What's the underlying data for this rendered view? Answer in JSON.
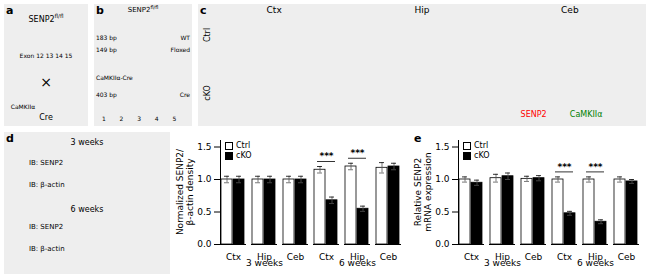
{
  "chart_data": [
    {
      "type": "schematic",
      "title": "a",
      "annotations": [
        {
          "text": "SENP2",
          "superscript": "fl/fl"
        },
        {
          "text": "Exon 12 13 14  15"
        },
        {
          "text": "×"
        },
        {
          "text": "CaMKIIα"
        },
        {
          "text": "Cre"
        }
      ]
    },
    {
      "type": "schematic",
      "title": "b",
      "annotations": [
        {
          "text": "SENP2",
          "superscript": "fl/fl"
        },
        {
          "text": "183 bp"
        },
        {
          "text": "149 bp"
        },
        {
          "text": "WT"
        },
        {
          "text": "Floxed"
        },
        {
          "text": "CaMKIIα-Cre"
        },
        {
          "text": "403 bp"
        },
        {
          "text": "Cre"
        },
        {
          "text": "1"
        },
        {
          "text": "2"
        },
        {
          "text": "3"
        },
        {
          "text": "4"
        },
        {
          "text": "5"
        }
      ]
    },
    {
      "type": "schematic",
      "title": "c",
      "annotations": [
        {
          "text": "Ctx"
        },
        {
          "text": "Hip"
        },
        {
          "text": "Ceb"
        },
        {
          "text": "Ctrl"
        },
        {
          "text": "cKO"
        },
        {
          "text": "SENP2",
          "color": "red"
        },
        {
          "text": "CaMKIIα",
          "color": "green"
        }
      ]
    },
    {
      "type": "schematic",
      "title": "d",
      "annotations": [
        {
          "text": "3 weeks"
        },
        {
          "text": "6 weeks"
        },
        {
          "text": "IB: SENP2"
        },
        {
          "text": "IB: β-actin"
        },
        {
          "text": "IB: SENP2"
        },
        {
          "text": "IB: β-actin"
        }
      ]
    },
    {
      "type": "bar",
      "categories": [
        "Ctx",
        "Hip",
        "Ceb",
        "Ctx",
        "Hip",
        "Ceb"
      ],
      "category_groups": [
        "3 weeks",
        "3 weeks",
        "3 weeks",
        "6 weeks",
        "6 weeks",
        "6 weeks"
      ],
      "series": [
        {
          "name": "Ctrl",
          "color": "white",
          "values": [
            1.0,
            1.0,
            1.0,
            1.15,
            1.2,
            1.18
          ],
          "errors": [
            0.05,
            0.05,
            0.05,
            0.05,
            0.05,
            0.08
          ]
        },
        {
          "name": "cKO",
          "color": "black",
          "values": [
            1.0,
            1.0,
            1.0,
            0.68,
            0.55,
            1.2
          ],
          "errors": [
            0.05,
            0.05,
            0.05,
            0.05,
            0.04,
            0.05
          ]
        }
      ],
      "significance": [
        null,
        null,
        null,
        "***",
        "***",
        null
      ],
      "ylabel": "Normalized SENP2/\nβ-actin density",
      "ylim": [
        0,
        1.6
      ],
      "yticks": [
        {
          "value": 0,
          "label": "0.0"
        },
        0.5,
        {
          "value": 1.0,
          "label": "1.0"
        },
        1.5
      ],
      "legend": "upper left"
    },
    {
      "type": "bar",
      "title": "e",
      "categories": [
        "Ctx",
        "Hip",
        "Ceb",
        "Ctx",
        "Hip",
        "Ceb"
      ],
      "category_groups": [
        "3 weeks",
        "3 weeks",
        "3 weeks",
        "6 weeks",
        "6 weeks",
        "6 weeks"
      ],
      "series": [
        {
          "name": "Ctrl",
          "color": "white",
          "values": [
            1.0,
            1.02,
            1.01,
            1.0,
            1.0,
            1.0
          ],
          "errors": [
            0.04,
            0.06,
            0.04,
            0.04,
            0.04,
            0.04
          ]
        },
        {
          "name": "cKO",
          "color": "black",
          "values": [
            0.95,
            1.05,
            1.02,
            0.48,
            0.35,
            0.97
          ],
          "errors": [
            0.04,
            0.05,
            0.04,
            0.03,
            0.03,
            0.03
          ]
        }
      ],
      "significance": [
        null,
        null,
        null,
        "***",
        "***",
        null
      ],
      "ylabel": "Relative SENP2\nmRNA expression",
      "ylim": [
        0,
        1.6
      ],
      "yticks": [
        {
          "value": 0,
          "label": "0.0"
        },
        0.5,
        {
          "value": 1.0,
          "label": "1.0"
        },
        1.5
      ],
      "legend": "upper left"
    }
  ]
}
